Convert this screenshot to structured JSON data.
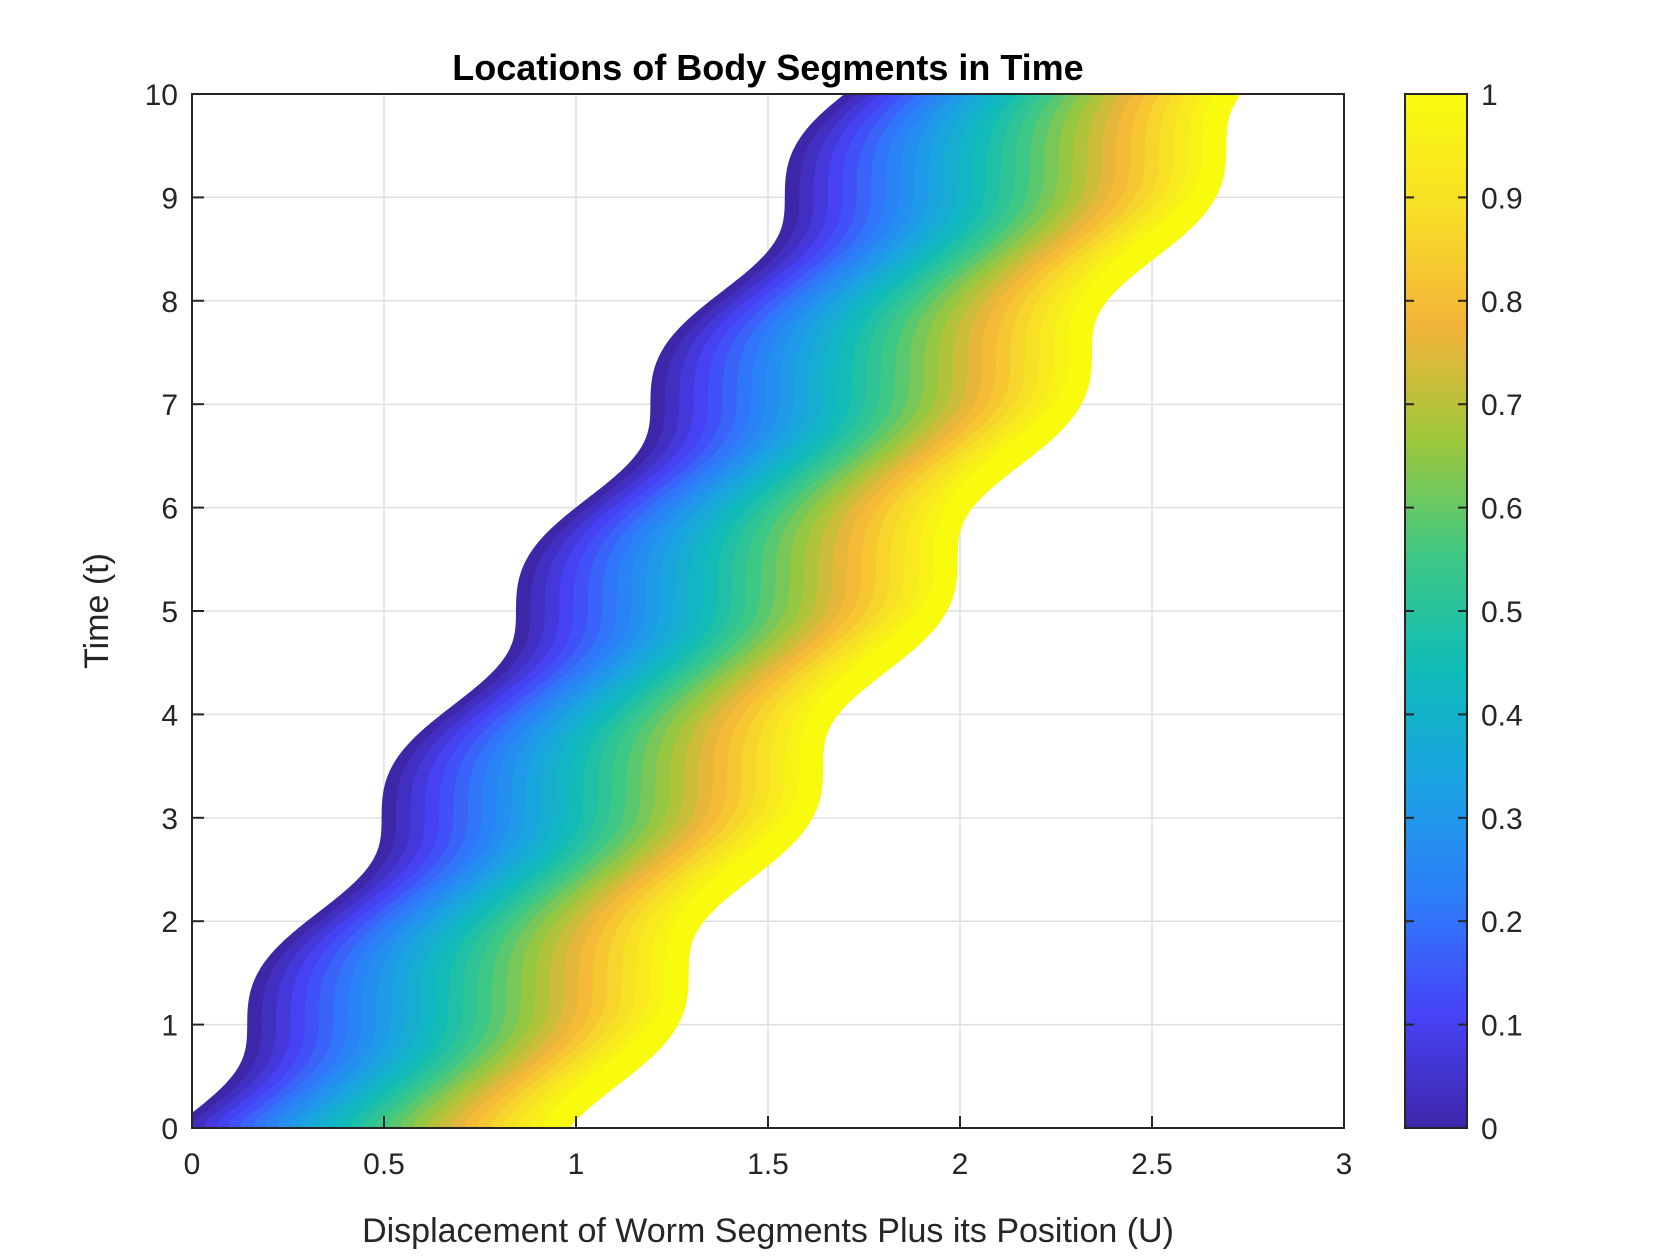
{
  "chart_data": {
    "type": "line",
    "title": "Locations of Body Segments in Time",
    "xlabel": "Displacement of Worm Segments Plus its Position (U)",
    "ylabel": "Time (t)",
    "xlim": [
      0,
      3
    ],
    "ylim": [
      0,
      10
    ],
    "xticks": [
      "0",
      "0.5",
      "1",
      "1.5",
      "2",
      "2.5",
      "3"
    ],
    "yticks": [
      "0",
      "1",
      "2",
      "3",
      "4",
      "5",
      "6",
      "7",
      "8",
      "9",
      "10"
    ],
    "grid": true,
    "series_count": 30,
    "segment_position_range": [
      0,
      1
    ],
    "displacement_model": {
      "drift_per_time": 0.175,
      "period": 2,
      "amplitude": 0.055,
      "wave_phase_shift": 0.25
    },
    "colorbar": {
      "colormap": "parula",
      "range": [
        0,
        1
      ],
      "ticks": [
        "0",
        "0.1",
        "0.2",
        "0.3",
        "0.4",
        "0.5",
        "0.6",
        "0.7",
        "0.8",
        "0.9",
        "1"
      ],
      "stops": [
        "#3e26a8",
        "#4743f8",
        "#2d7dfa",
        "#1ba2e3",
        "#0fbcb8",
        "#40c883",
        "#9fc73a",
        "#f4b43a",
        "#f8df27",
        "#f9fb0e"
      ]
    }
  }
}
